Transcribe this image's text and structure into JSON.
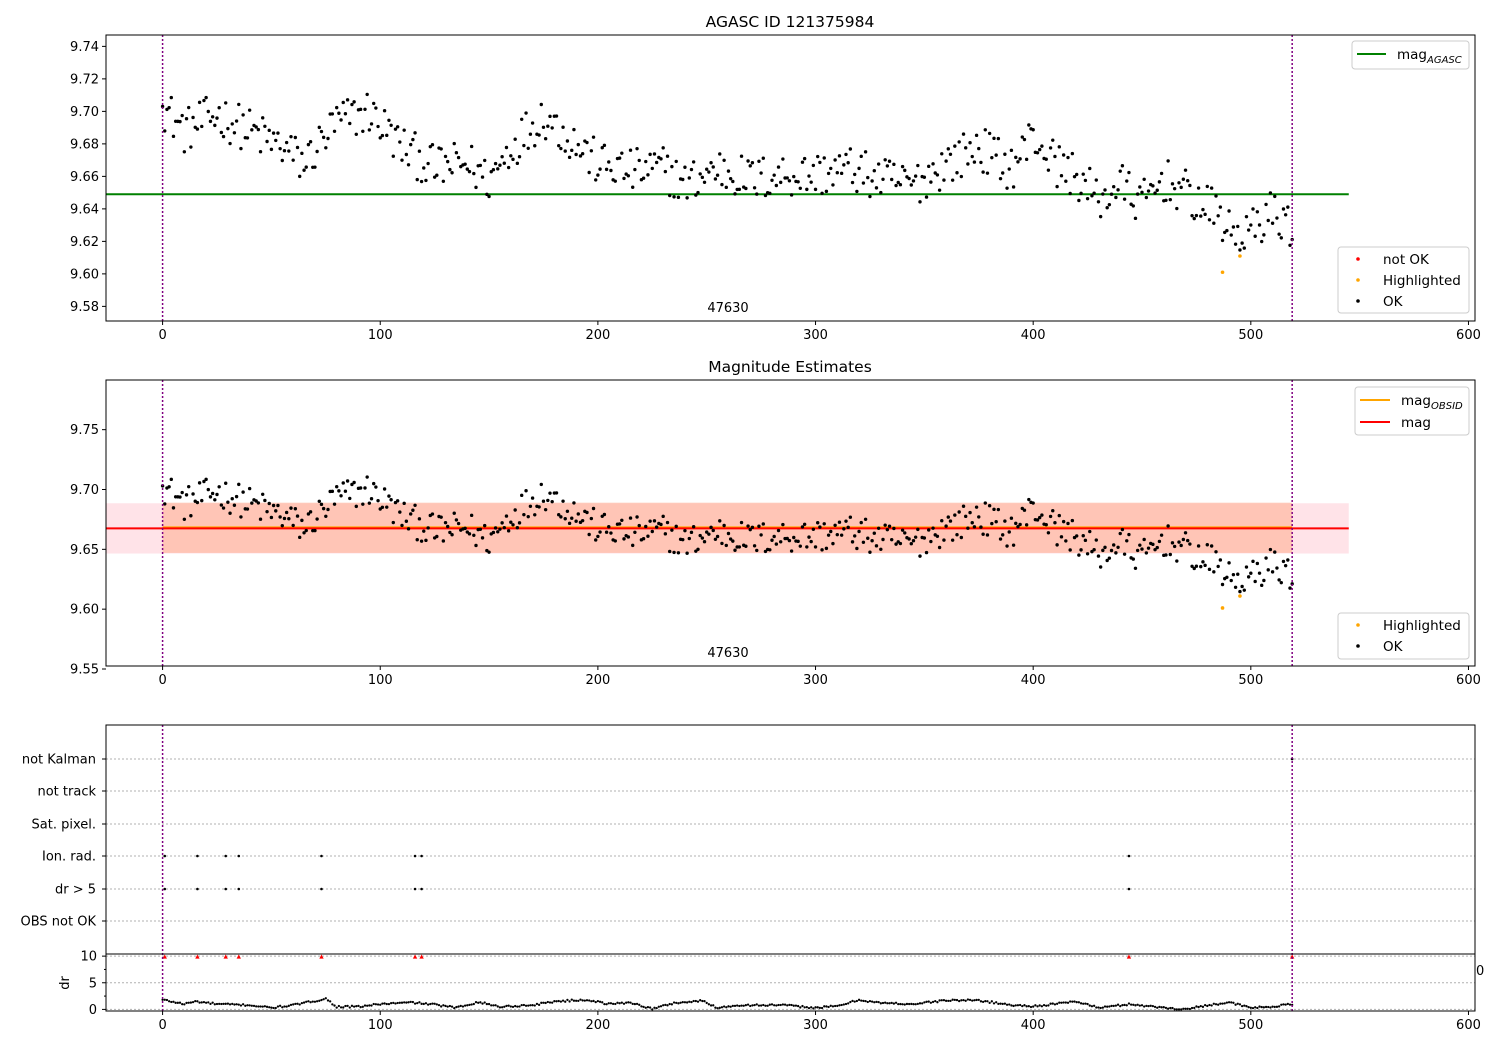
{
  "colors": {
    "ok": "#000000",
    "not_ok": "#ff0000",
    "highlighted": "#ffa500",
    "mag_agasc": "#008000",
    "mag_obsid": "#ffa500",
    "mag": "#ff0000",
    "obs_boundary": "#800080",
    "band_obs": "#ffa07a",
    "band_mag": "#ffc0cb"
  },
  "chart_data": [
    {
      "type": "scatter",
      "title": "AGASC ID 121375984",
      "xlim": [
        -26,
        603
      ],
      "ylim": [
        9.571,
        9.747
      ],
      "x_ticks": [
        "0",
        "100",
        "200",
        "300",
        "400",
        "500",
        "600"
      ],
      "y_ticks": [
        "9.58",
        "9.60",
        "9.62",
        "9.64",
        "9.66",
        "9.68",
        "9.70",
        "9.72",
        "9.74"
      ],
      "obsid_label": "47630",
      "obs_boundaries": [
        0,
        519
      ],
      "hlines": [
        {
          "name": "mag_AGASC",
          "y": 9.649,
          "x": [
            -26,
            545
          ]
        }
      ],
      "legend_top": [
        {
          "label": "mag",
          "sub": "AGASC",
          "kind": "line",
          "color": "mag_agasc"
        }
      ],
      "legend_bottom": [
        {
          "label": "not OK",
          "kind": "dot",
          "color": "not_ok"
        },
        {
          "label": "Highlighted",
          "kind": "dot",
          "color": "highlighted"
        },
        {
          "label": "OK",
          "kind": "dot",
          "color": "ok"
        }
      ],
      "highlighted_points": [
        [
          487,
          9.601
        ],
        [
          495,
          9.611
        ]
      ],
      "ok_anchors": [
        [
          0,
          9.703
        ],
        [
          10,
          9.688
        ],
        [
          25,
          9.698
        ],
        [
          40,
          9.688
        ],
        [
          55,
          9.678
        ],
        [
          65,
          9.668
        ],
        [
          80,
          9.693
        ],
        [
          95,
          9.7
        ],
        [
          110,
          9.678
        ],
        [
          125,
          9.665
        ],
        [
          140,
          9.668
        ],
        [
          150,
          9.658
        ],
        [
          160,
          9.678
        ],
        [
          175,
          9.698
        ],
        [
          190,
          9.68
        ],
        [
          200,
          9.668
        ],
        [
          215,
          9.663
        ],
        [
          230,
          9.665
        ],
        [
          240,
          9.655
        ],
        [
          255,
          9.665
        ],
        [
          270,
          9.658
        ],
        [
          285,
          9.661
        ],
        [
          300,
          9.661
        ],
        [
          315,
          9.665
        ],
        [
          330,
          9.658
        ],
        [
          345,
          9.655
        ],
        [
          360,
          9.668
        ],
        [
          375,
          9.678
        ],
        [
          390,
          9.665
        ],
        [
          400,
          9.685
        ],
        [
          410,
          9.668
        ],
        [
          420,
          9.66
        ],
        [
          430,
          9.645
        ],
        [
          440,
          9.655
        ],
        [
          450,
          9.643
        ],
        [
          460,
          9.658
        ],
        [
          470,
          9.65
        ],
        [
          478,
          9.641
        ],
        [
          485,
          9.638
        ],
        [
          490,
          9.625
        ],
        [
          500,
          9.625
        ],
        [
          508,
          9.638
        ],
        [
          519,
          9.63
        ]
      ]
    },
    {
      "type": "scatter",
      "title": "Magnitude Estimates",
      "xlim": [
        -26,
        603
      ],
      "ylim": [
        9.5525,
        9.7915
      ],
      "x_ticks": [
        "0",
        "100",
        "200",
        "300",
        "400",
        "500",
        "600"
      ],
      "y_ticks": [
        "9.55",
        "9.60",
        "9.65",
        "9.70",
        "9.75"
      ],
      "obsid_label": "47630",
      "obs_boundaries": [
        0,
        519
      ],
      "hlines": [
        {
          "name": "mag_OBSID",
          "y": 9.6683,
          "x": [
            0,
            519
          ],
          "color": "mag_obsid"
        },
        {
          "name": "mag",
          "y": 9.6675,
          "x": [
            -26,
            545
          ],
          "color": "mag"
        }
      ],
      "bands": [
        {
          "name": "mag",
          "y": [
            9.6465,
            9.6885
          ],
          "x": [
            -26,
            545
          ],
          "color": "band_mag"
        },
        {
          "name": "mag_OBSID",
          "y": [
            9.647,
            9.689
          ],
          "x": [
            0,
            519
          ],
          "color": "band_obs"
        }
      ],
      "legend_top": [
        {
          "label": "mag",
          "sub": "OBSID",
          "kind": "line",
          "color": "mag_obsid"
        },
        {
          "label": "mag",
          "sub": "",
          "kind": "line",
          "color": "mag"
        }
      ],
      "legend_bottom": [
        {
          "label": "Highlighted",
          "kind": "dot",
          "color": "highlighted"
        },
        {
          "label": "OK",
          "kind": "dot",
          "color": "ok"
        }
      ]
    },
    {
      "type": "scatter",
      "title": "",
      "xlim": [
        -26,
        603
      ],
      "x_ticks": [
        "0",
        "100",
        "200",
        "300",
        "400",
        "500",
        "600"
      ],
      "flag_rows": [
        "not Kalman",
        "not track",
        "Sat. pixel.",
        "Ion. rad.",
        "dr > 5",
        "OBS not OK"
      ],
      "flag_points": {
        "not Kalman": [
          519
        ],
        "not track": [],
        "Sat. pixel.": [],
        "Ion. rad.": [
          1,
          16,
          29,
          35,
          73,
          116,
          119,
          444
        ],
        "dr > 5": [
          1,
          16,
          29,
          35,
          73,
          116,
          119,
          444
        ],
        "OBS not OK": []
      },
      "dr_panel": {
        "ylabel": "dr",
        "ylim": [
          -0.3,
          10.4
        ],
        "y_ticks": [
          "0",
          "5",
          "10"
        ],
        "right_label": "0",
        "large_dr_marker_y": 9.9,
        "large_dr_points": [
          1,
          16,
          29,
          35,
          73,
          116,
          119,
          444,
          519
        ],
        "dr_anchors": [
          [
            0,
            1.8
          ],
          [
            10,
            1.0
          ],
          [
            15,
            1.5
          ],
          [
            25,
            1.0
          ],
          [
            40,
            0.8
          ],
          [
            50,
            0.3
          ],
          [
            60,
            0.8
          ],
          [
            70,
            1.6
          ],
          [
            75,
            2.0
          ],
          [
            80,
            0.5
          ],
          [
            90,
            0.5
          ],
          [
            100,
            1.0
          ],
          [
            115,
            1.3
          ],
          [
            125,
            0.9
          ],
          [
            135,
            0.3
          ],
          [
            145,
            1.4
          ],
          [
            155,
            0.5
          ],
          [
            170,
            0.8
          ],
          [
            180,
            1.5
          ],
          [
            195,
            1.8
          ],
          [
            205,
            1.0
          ],
          [
            215,
            1.3
          ],
          [
            225,
            0.1
          ],
          [
            235,
            1.2
          ],
          [
            248,
            1.6
          ],
          [
            255,
            0.3
          ],
          [
            265,
            0.8
          ],
          [
            285,
            0.8
          ],
          [
            300,
            0.3
          ],
          [
            310,
            0.6
          ],
          [
            320,
            1.8
          ],
          [
            330,
            1.2
          ],
          [
            345,
            1.0
          ],
          [
            360,
            1.7
          ],
          [
            375,
            1.7
          ],
          [
            390,
            0.8
          ],
          [
            400,
            0.6
          ],
          [
            410,
            1.0
          ],
          [
            420,
            1.5
          ],
          [
            430,
            0.3
          ],
          [
            445,
            1.0
          ],
          [
            455,
            0.5
          ],
          [
            470,
            0.0
          ],
          [
            480,
            0.8
          ],
          [
            490,
            1.3
          ],
          [
            500,
            0.3
          ],
          [
            510,
            0.5
          ],
          [
            519,
            1.0
          ]
        ]
      }
    }
  ]
}
